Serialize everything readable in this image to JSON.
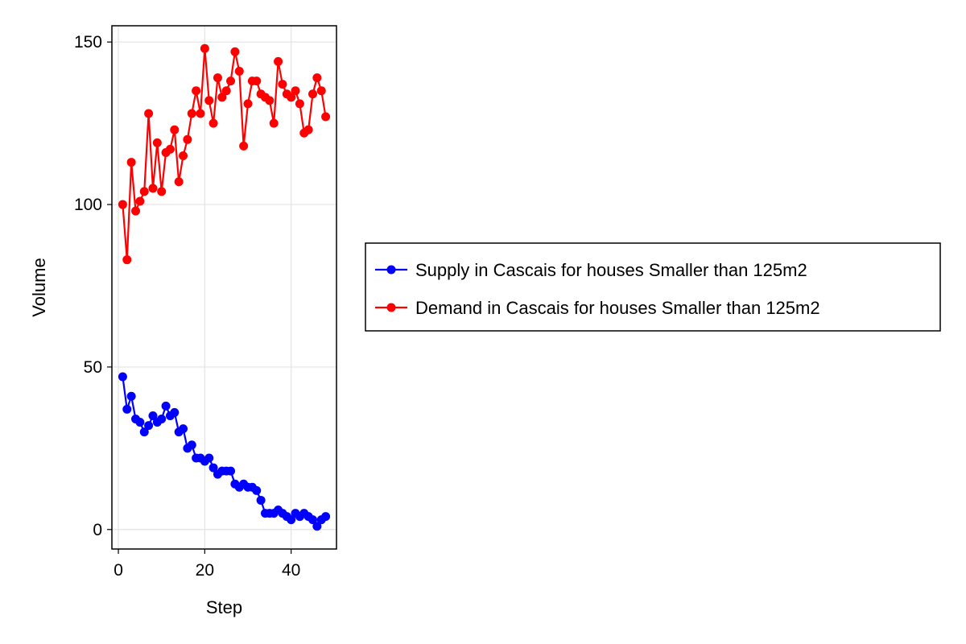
{
  "chart_data": {
    "type": "line",
    "xlabel": "Step",
    "ylabel": "Volume",
    "xlim": [
      -1.5,
      50.5
    ],
    "ylim": [
      -6,
      155
    ],
    "xticks": [
      0,
      20,
      40
    ],
    "yticks": [
      0,
      50,
      100,
      150
    ],
    "grid": true,
    "legend_position": "right",
    "x": [
      1,
      2,
      3,
      4,
      5,
      6,
      7,
      8,
      9,
      10,
      11,
      12,
      13,
      14,
      15,
      16,
      17,
      18,
      19,
      20,
      21,
      22,
      23,
      24,
      25,
      26,
      27,
      28,
      29,
      30,
      31,
      32,
      33,
      34,
      35,
      36,
      37,
      38,
      39,
      40,
      41,
      42,
      43,
      44,
      45,
      46,
      47,
      48
    ],
    "series": [
      {
        "name": "Supply in Cascais for houses Smaller than 125m2",
        "color": "#0000ff",
        "values": [
          47,
          37,
          41,
          34,
          33,
          30,
          32,
          35,
          33,
          34,
          38,
          35,
          36,
          30,
          31,
          25,
          26,
          22,
          22,
          21,
          22,
          19,
          17,
          18,
          18,
          18,
          14,
          13,
          14,
          13,
          13,
          12,
          9,
          5,
          5,
          5,
          6,
          5,
          4,
          3,
          5,
          4,
          5,
          4,
          3,
          1,
          3,
          4
        ]
      },
      {
        "name": "Demand in Cascais for houses Smaller than 125m2",
        "color": "#ff0000",
        "values": [
          100,
          83,
          113,
          98,
          101,
          104,
          128,
          105,
          119,
          104,
          116,
          117,
          123,
          107,
          115,
          120,
          128,
          135,
          128,
          148,
          132,
          125,
          139,
          133,
          135,
          138,
          147,
          141,
          118,
          131,
          138,
          138,
          134,
          133,
          132,
          125,
          144,
          137,
          134,
          133,
          135,
          131,
          122,
          123,
          134,
          139,
          135,
          127
        ]
      }
    ]
  }
}
